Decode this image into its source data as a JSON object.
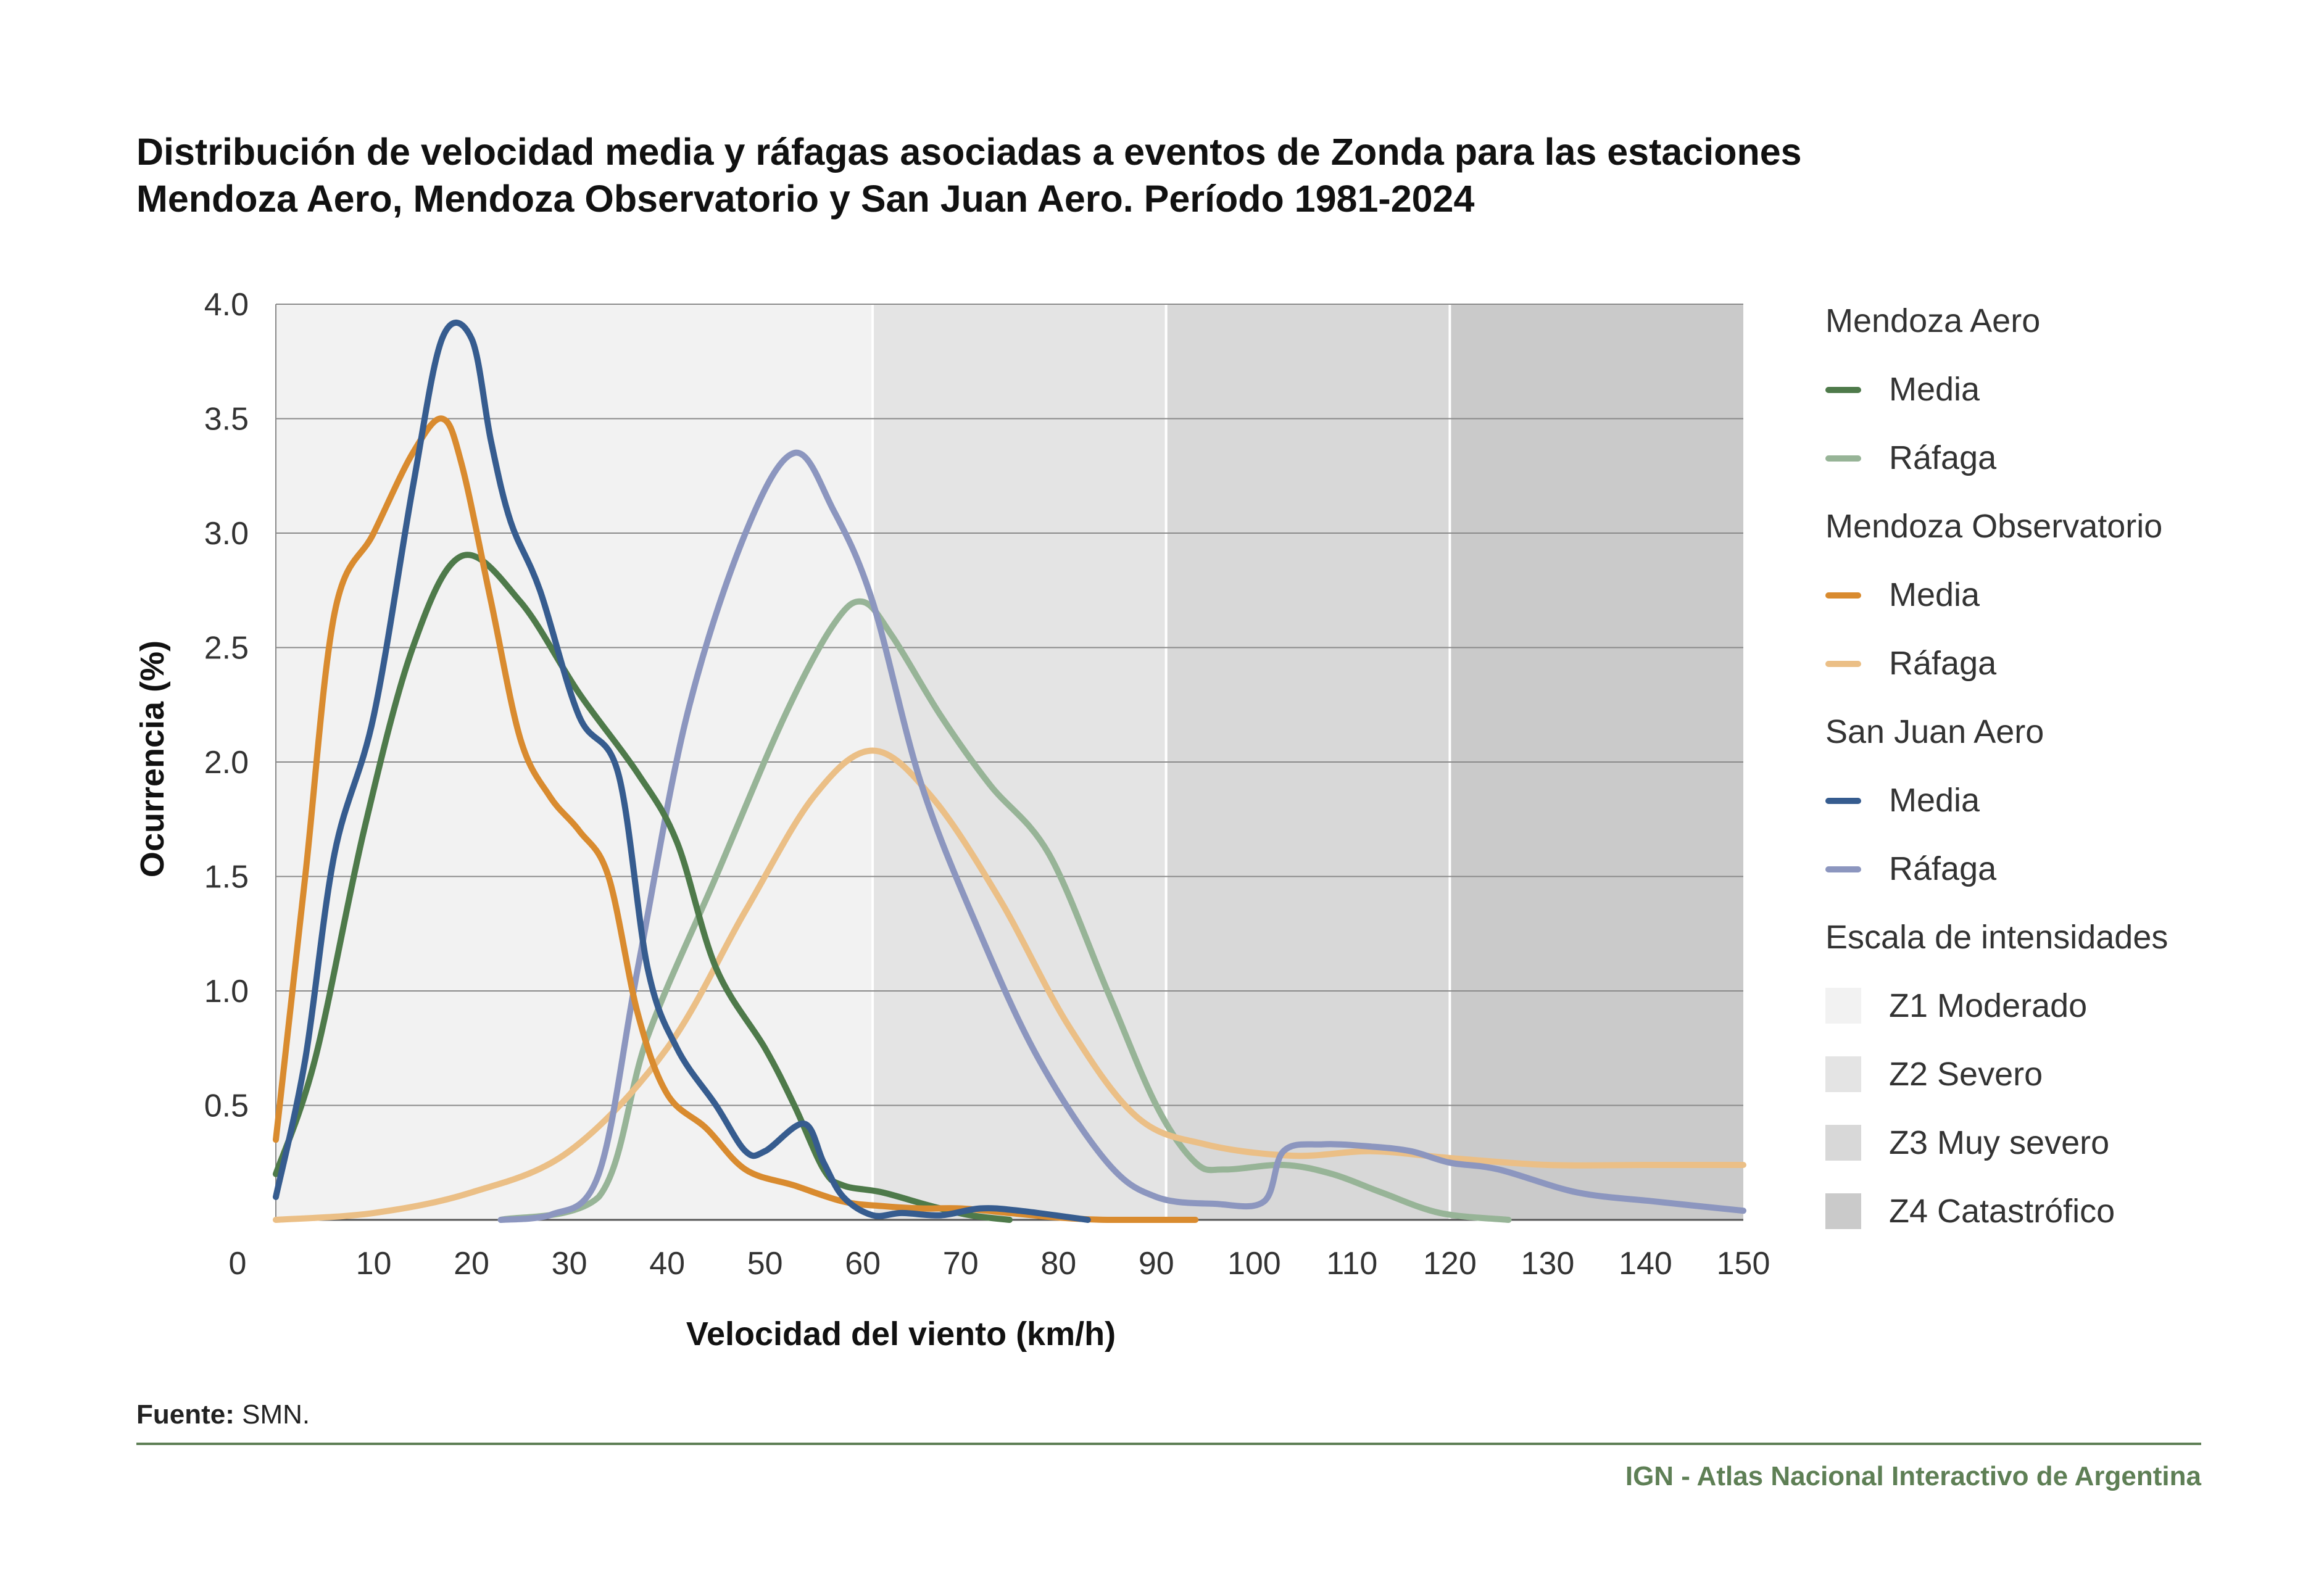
{
  "title_lines": [
    "Distribución de velocidad media y ráfagas asociadas a eventos de Zonda para las estaciones",
    "Mendoza Aero, Mendoza Observatorio y San Juan Aero. Período 1981-2024"
  ],
  "legend": {
    "groups": [
      {
        "label": "Mendoza Aero",
        "items": [
          {
            "label": "Media",
            "color": "#4e7a4a"
          },
          {
            "label": "Ráfaga",
            "color": "#97b497"
          }
        ]
      },
      {
        "label": "Mendoza Observatorio",
        "items": [
          {
            "label": "Media",
            "color": "#d98b2f"
          },
          {
            "label": "Ráfaga",
            "color": "#ebbf86"
          }
        ]
      },
      {
        "label": "San Juan Aero",
        "items": [
          {
            "label": "Media",
            "color": "#365c8f"
          },
          {
            "label": "Ráfaga",
            "color": "#8c96bf"
          }
        ]
      }
    ],
    "scale_label": "Escala de intensidades",
    "scale_items": [
      {
        "label": "Z1 Moderado",
        "color": "#f2f2f2"
      },
      {
        "label": "Z2 Severo",
        "color": "#e4e4e4"
      },
      {
        "label": "Z3 Muy severo",
        "color": "#d8d8d8"
      },
      {
        "label": "Z4 Catastrófico",
        "color": "#cacaca"
      }
    ]
  },
  "source_label": "Fuente:",
  "source_text": "SMN.",
  "credit": "IGN - Atlas Nacional Interactivo de Argentina",
  "chart_data": {
    "type": "line",
    "xlabel": "Velocidad del viento (km/h)",
    "ylabel": "Ocurrencia (%)",
    "xlim": [
      0,
      150
    ],
    "ylim": [
      0,
      4.0
    ],
    "xticks": [
      "0",
      "10",
      "20",
      "30",
      "40",
      "50",
      "60",
      "70",
      "80",
      "90",
      "100",
      "110",
      "120",
      "130",
      "140",
      "150"
    ],
    "yticks": [
      "0.5",
      "1.0",
      "1.5",
      "2.0",
      "2.5",
      "3.0",
      "3.5",
      "4.0"
    ],
    "zones": [
      {
        "name": "Z1 Moderado",
        "from": 0,
        "to": 61,
        "color": "#f2f2f2"
      },
      {
        "name": "Z2 Severo",
        "from": 61,
        "to": 91,
        "color": "#e4e4e4"
      },
      {
        "name": "Z3 Muy severo",
        "from": 91,
        "to": 120,
        "color": "#d8d8d8"
      },
      {
        "name": "Z4 Catastrófico",
        "from": 120,
        "to": 150,
        "color": "#cacaca"
      }
    ],
    "series": [
      {
        "name": "Mendoza Aero - Ráfaga",
        "color": "#97b497",
        "x": [
          23,
          33,
          38,
          45,
          52,
          57,
          60,
          63,
          68,
          73,
          79,
          85,
          90,
          94,
          97,
          103,
          108,
          113,
          119,
          126
        ],
        "y": [
          0.0,
          0.1,
          0.8,
          1.5,
          2.2,
          2.6,
          2.7,
          2.55,
          2.2,
          1.9,
          1.6,
          1.0,
          0.5,
          0.25,
          0.22,
          0.24,
          0.2,
          0.12,
          0.03,
          0.0
        ]
      },
      {
        "name": "Mendoza Observatorio - Ráfaga",
        "color": "#ebbf86",
        "x": [
          0,
          10,
          20,
          30,
          40,
          48,
          55,
          61,
          67,
          74,
          81,
          88,
          95,
          104,
          112,
          120,
          130,
          140,
          150
        ],
        "y": [
          0.0,
          0.03,
          0.12,
          0.3,
          0.75,
          1.35,
          1.85,
          2.05,
          1.85,
          1.4,
          0.85,
          0.45,
          0.33,
          0.28,
          0.3,
          0.27,
          0.24,
          0.24,
          0.24
        ]
      },
      {
        "name": "San Juan Aero - Ráfaga",
        "color": "#8c96bf",
        "x": [
          23,
          28,
          33,
          37,
          42,
          48,
          53,
          57,
          61,
          66,
          72,
          78,
          85,
          90,
          96,
          101,
          103,
          107,
          112,
          116,
          120,
          125,
          133,
          141,
          150
        ],
        "y": [
          0.0,
          0.02,
          0.2,
          1.1,
          2.2,
          3.0,
          3.35,
          3.1,
          2.7,
          1.9,
          1.25,
          0.7,
          0.25,
          0.1,
          0.07,
          0.08,
          0.3,
          0.33,
          0.32,
          0.3,
          0.25,
          0.22,
          0.12,
          0.08,
          0.04
        ]
      },
      {
        "name": "Mendoza Aero - Media",
        "color": "#4e7a4a",
        "x": [
          0,
          4,
          9,
          14,
          19,
          25,
          31,
          37,
          41,
          45,
          50,
          53,
          56,
          58,
          62,
          67,
          71,
          75
        ],
        "y": [
          0.2,
          0.7,
          1.7,
          2.5,
          2.9,
          2.7,
          2.3,
          1.95,
          1.65,
          1.1,
          0.75,
          0.5,
          0.22,
          0.15,
          0.12,
          0.06,
          0.02,
          0.0
        ]
      },
      {
        "name": "Mendoza Observatorio - Media",
        "color": "#d98b2f",
        "x": [
          0,
          3,
          6,
          10,
          14,
          17,
          19,
          22,
          25,
          28,
          31,
          34,
          37,
          40,
          44,
          48,
          53,
          58,
          62,
          66,
          70,
          75,
          80,
          85,
          94
        ],
        "y": [
          0.35,
          1.5,
          2.65,
          3.0,
          3.35,
          3.5,
          3.3,
          2.7,
          2.1,
          1.85,
          1.7,
          1.5,
          0.9,
          0.55,
          0.4,
          0.22,
          0.15,
          0.08,
          0.06,
          0.05,
          0.05,
          0.03,
          0.01,
          0.0,
          0.0
        ]
      },
      {
        "name": "San Juan Aero - Media",
        "color": "#365c8f",
        "x": [
          0,
          3,
          6,
          10,
          14,
          17,
          20,
          22,
          24,
          27,
          31,
          35,
          38,
          41,
          45,
          48,
          50,
          54,
          56,
          58,
          61,
          64,
          68,
          72,
          76,
          83
        ],
        "y": [
          0.1,
          0.7,
          1.6,
          2.2,
          3.2,
          3.85,
          3.85,
          3.4,
          3.05,
          2.75,
          2.2,
          1.95,
          1.1,
          0.75,
          0.5,
          0.3,
          0.3,
          0.42,
          0.25,
          0.1,
          0.02,
          0.03,
          0.02,
          0.05,
          0.04,
          0.0
        ]
      }
    ]
  }
}
